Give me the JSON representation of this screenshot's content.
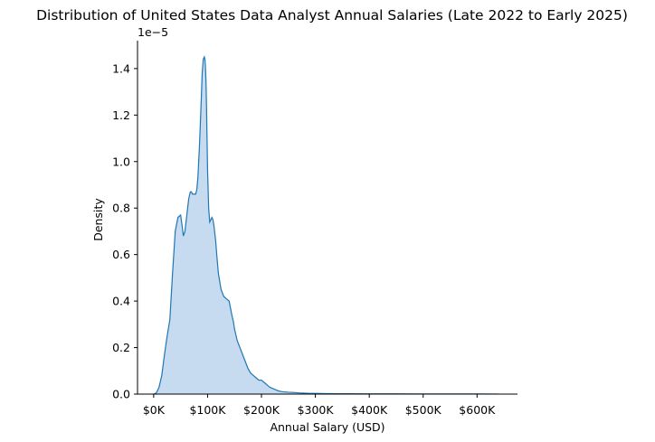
{
  "chart_data": {
    "type": "area",
    "title": "Distribution of United States Data Analyst Annual Salaries (Late 2022 to Early 2025)",
    "xlabel": "Annual Salary (USD)",
    "ylabel": "Density",
    "y_offset_label": "1e−5",
    "xlim": [
      -30000,
      675000
    ],
    "ylim": [
      0,
      1.52
    ],
    "x_ticks": [
      {
        "value": 0,
        "label": "$0K"
      },
      {
        "value": 100000,
        "label": "$100K"
      },
      {
        "value": 200000,
        "label": "$200K"
      },
      {
        "value": 300000,
        "label": "$300K"
      },
      {
        "value": 400000,
        "label": "$400K"
      },
      {
        "value": 500000,
        "label": "$500K"
      },
      {
        "value": 600000,
        "label": "$600K"
      }
    ],
    "y_ticks": [
      {
        "value": 0.0,
        "label": "0.0"
      },
      {
        "value": 0.2,
        "label": "0.2"
      },
      {
        "value": 0.4,
        "label": "0.4"
      },
      {
        "value": 0.6,
        "label": "0.6"
      },
      {
        "value": 0.8,
        "label": "0.8"
      },
      {
        "value": 1.0,
        "label": "1.0"
      },
      {
        "value": 1.2,
        "label": "1.2"
      },
      {
        "value": 1.4,
        "label": "1.4"
      }
    ],
    "grid": false,
    "series": [
      {
        "color": "#1f77b4",
        "fill": "#c6dbef",
        "x": [
          0,
          5000,
          10000,
          15000,
          20000,
          25000,
          30000,
          35000,
          40000,
          45000,
          50000,
          53000,
          55000,
          58000,
          60000,
          63000,
          65000,
          68000,
          70000,
          72000,
          75000,
          78000,
          80000,
          82000,
          85000,
          88000,
          90000,
          92000,
          94000,
          95000,
          96000,
          97000,
          98000,
          99000,
          100000,
          102000,
          104000,
          106000,
          108000,
          110000,
          112000,
          113000,
          115000,
          117000,
          120000,
          125000,
          130000,
          135000,
          140000,
          145000,
          148000,
          150000,
          155000,
          160000,
          165000,
          170000,
          175000,
          180000,
          185000,
          190000,
          195000,
          200000,
          205000,
          210000,
          215000,
          220000,
          225000,
          230000,
          235000,
          240000,
          250000,
          260000,
          270000,
          280000,
          290000,
          300000,
          320000,
          350000,
          400000,
          450000,
          500000,
          550000,
          600000,
          640000
        ],
        "y": [
          0.0,
          0.005,
          0.03,
          0.08,
          0.17,
          0.25,
          0.32,
          0.52,
          0.7,
          0.76,
          0.77,
          0.72,
          0.68,
          0.7,
          0.74,
          0.8,
          0.84,
          0.87,
          0.87,
          0.86,
          0.86,
          0.86,
          0.88,
          0.93,
          1.07,
          1.25,
          1.38,
          1.44,
          1.45,
          1.44,
          1.41,
          1.35,
          1.24,
          1.1,
          0.96,
          0.8,
          0.74,
          0.75,
          0.76,
          0.75,
          0.72,
          0.7,
          0.66,
          0.6,
          0.52,
          0.45,
          0.42,
          0.41,
          0.4,
          0.34,
          0.31,
          0.28,
          0.23,
          0.2,
          0.17,
          0.14,
          0.11,
          0.09,
          0.08,
          0.07,
          0.06,
          0.06,
          0.05,
          0.04,
          0.03,
          0.025,
          0.02,
          0.015,
          0.012,
          0.01,
          0.008,
          0.007,
          0.005,
          0.004,
          0.003,
          0.003,
          0.002,
          0.0015,
          0.001,
          0.001,
          0.0008,
          0.0006,
          0.0005,
          0.0003
        ]
      }
    ]
  }
}
